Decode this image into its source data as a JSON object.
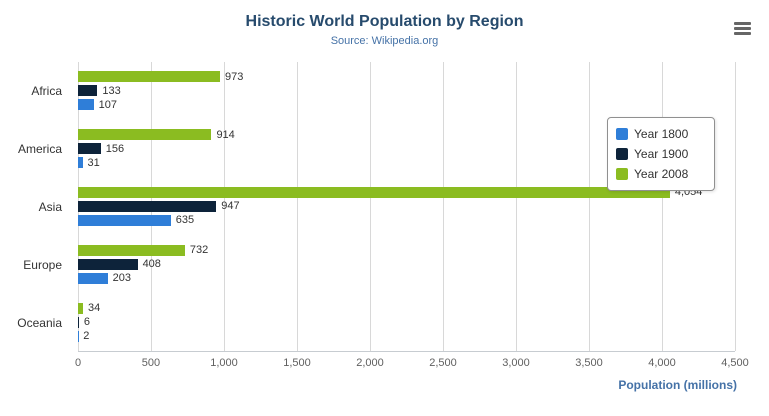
{
  "chart_data": {
    "type": "bar",
    "title": "Historic World Population by Region",
    "subtitle": "Source: Wikipedia.org",
    "categories": [
      "Africa",
      "America",
      "Asia",
      "Europe",
      "Oceania"
    ],
    "series": [
      {
        "name": "Year 1800",
        "color": "#2f7ed8",
        "values": [
          107,
          31,
          635,
          203,
          2
        ]
      },
      {
        "name": "Year 1900",
        "color": "#0d233a",
        "values": [
          133,
          156,
          947,
          408,
          6
        ]
      },
      {
        "name": "Year 2008",
        "color": "#8bbc21",
        "values": [
          973,
          914,
          4054,
          732,
          34
        ]
      }
    ],
    "display_order_top_to_bottom": [
      "Year 2008",
      "Year 1900",
      "Year 1800"
    ],
    "xlabel": "Population (millions)",
    "xlim": [
      0,
      4500
    ],
    "xticks": [
      0,
      500,
      1000,
      1500,
      2000,
      2500,
      3000,
      3500,
      4000,
      4500
    ],
    "tick_labels": [
      "0",
      "500",
      "1,000",
      "1,500",
      "2,000",
      "2,500",
      "3,000",
      "3,500",
      "4,000",
      "4,500"
    ],
    "grid": true,
    "legend_position": "right"
  }
}
